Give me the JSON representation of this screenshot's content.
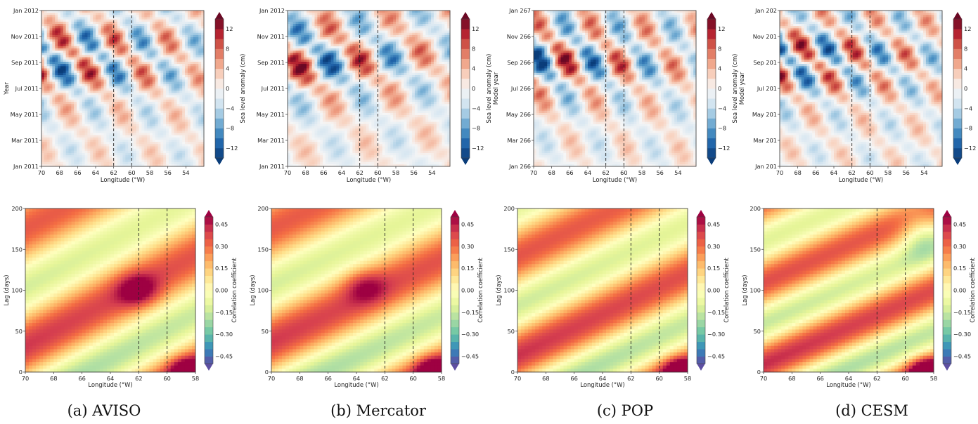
{
  "colors": {
    "diverging_rb": [
      "#0a3d7a",
      "#1f62a8",
      "#4d93c5",
      "#97c3df",
      "#d6e6f1",
      "#f6f6f6",
      "#f8d2bf",
      "#ee9c80",
      "#d55f4d",
      "#b3202f",
      "#6b0824"
    ],
    "spectral": [
      "#5e4fa2",
      "#3288bd",
      "#66c2a5",
      "#abdda4",
      "#e6f598",
      "#ffffbf",
      "#fee08b",
      "#fdae61",
      "#f46d43",
      "#d53e4f",
      "#9e0142"
    ],
    "reference_line": "#222222"
  },
  "panels": [
    {
      "caption": "(a) AVISO",
      "sla": {
        "ylabel": "Year",
        "yticks": [
          "Jan 2011",
          "Mar 2011",
          "May 2011",
          "Jul 2011",
          "Sep 2011",
          "Nov 2011",
          "Jan 2012"
        ]
      },
      "corr": {
        "style": "aviso"
      }
    },
    {
      "caption": "(b) Mercator",
      "sla": {
        "ylabel": "",
        "yticks": [
          "Jan 2011",
          "Mar 2011",
          "May 2011",
          "Jul 2011",
          "Sep 2011",
          "Nov 2011",
          "Jan 2012"
        ]
      },
      "corr": {
        "style": "mercator"
      }
    },
    {
      "caption": "(c) POP",
      "sla": {
        "ylabel": "Model year",
        "yticks": [
          "Jan 266",
          "Mar 266",
          "May 266",
          "Jul 266",
          "Sep 266",
          "Nov 266",
          "Jan 267"
        ]
      },
      "corr": {
        "style": "pop"
      }
    },
    {
      "caption": "(d) CESM",
      "sla": {
        "ylabel": "Model year",
        "yticks": [
          "Jan 201",
          "Mar 201",
          "May 201",
          "Jul 201",
          "Sep 201",
          "Nov 201",
          "Jan 202"
        ]
      },
      "corr": {
        "style": "cesm"
      }
    }
  ],
  "chart_data": [
    {
      "type": "heatmap",
      "panel": "sla",
      "xlabel": "Longitude (°W)",
      "x_ticks": [
        70,
        68,
        66,
        64,
        62,
        60,
        58,
        56,
        54
      ],
      "xlim": [
        70,
        52
      ],
      "reference_lines": [
        62,
        60
      ],
      "colorbar_label": "Sea level anomaly (cm)",
      "colorbar_ticks": [
        -12,
        -8,
        -4,
        0,
        4,
        8,
        12
      ],
      "colorbar_range": [
        -14,
        14
      ]
    },
    {
      "type": "heatmap",
      "panel": "correlation",
      "xlabel": "Longitude (°W)",
      "ylabel": "Lag (days)",
      "x_ticks": [
        70,
        68,
        66,
        64,
        62,
        60,
        58
      ],
      "xlim": [
        70,
        58
      ],
      "y_ticks": [
        0,
        50,
        100,
        150,
        200
      ],
      "ylim": [
        0,
        200
      ],
      "reference_lines": [
        62,
        60
      ],
      "colorbar_label": "Correlation coefficient",
      "colorbar_ticks": [
        -0.45,
        -0.3,
        -0.15,
        0.0,
        0.15,
        0.3,
        0.45
      ],
      "colorbar_tick_labels": [
        "−0.45",
        "−0.30",
        "−0.15",
        "0.00",
        "0.15",
        "0.30",
        "0.45"
      ],
      "colorbar_range": [
        -0.5,
        0.5
      ]
    }
  ]
}
